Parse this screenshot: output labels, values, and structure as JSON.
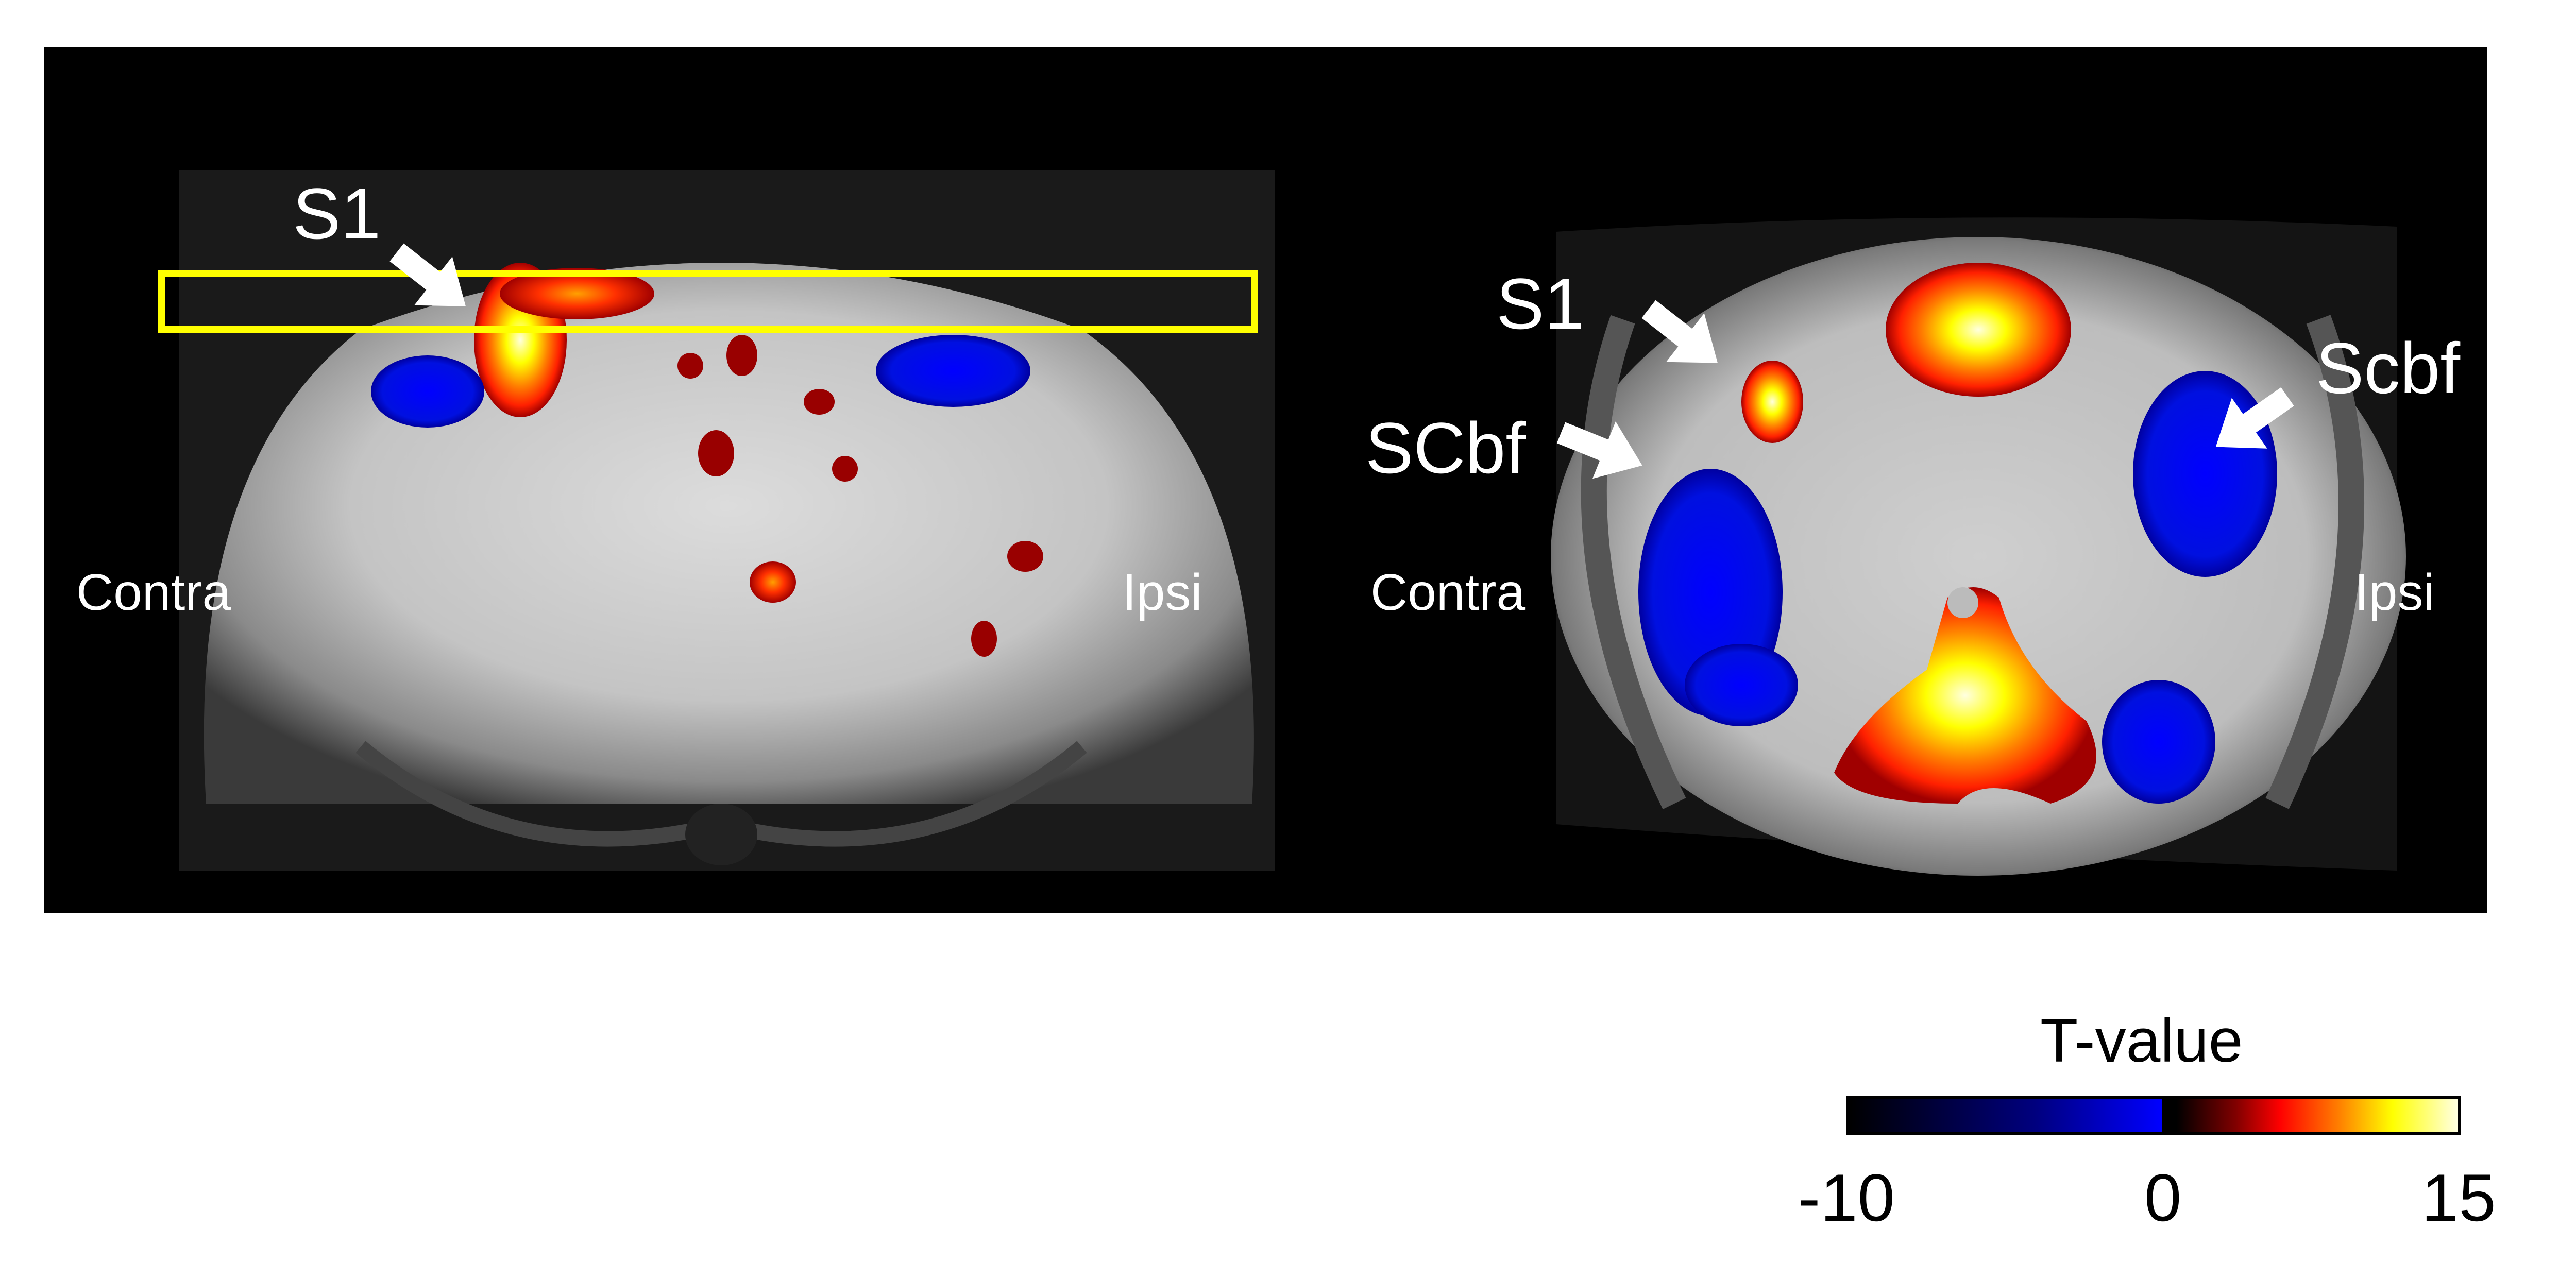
{
  "panels": {
    "left": {
      "labels": {
        "region": "S1",
        "contra": "Contra",
        "ipsi": "Ipsi"
      },
      "roi_box_color": "#ffff00"
    },
    "right": {
      "labels": {
        "s1": "S1",
        "scbf_left": "SCbf",
        "scbf_right": "Scbf",
        "contra": "Contra",
        "ipsi": "Ipsi"
      }
    }
  },
  "colorbar": {
    "title": "T-value",
    "min": -10,
    "zero": 0,
    "max": 15,
    "tick_labels": [
      "-10",
      "0",
      "15"
    ],
    "negative_colors": [
      "#000000",
      "#000080",
      "#0000ff"
    ],
    "positive_colors": [
      "#000000",
      "#800000",
      "#ff0000",
      "#ff8000",
      "#ffff00",
      "#ffffe0"
    ]
  }
}
